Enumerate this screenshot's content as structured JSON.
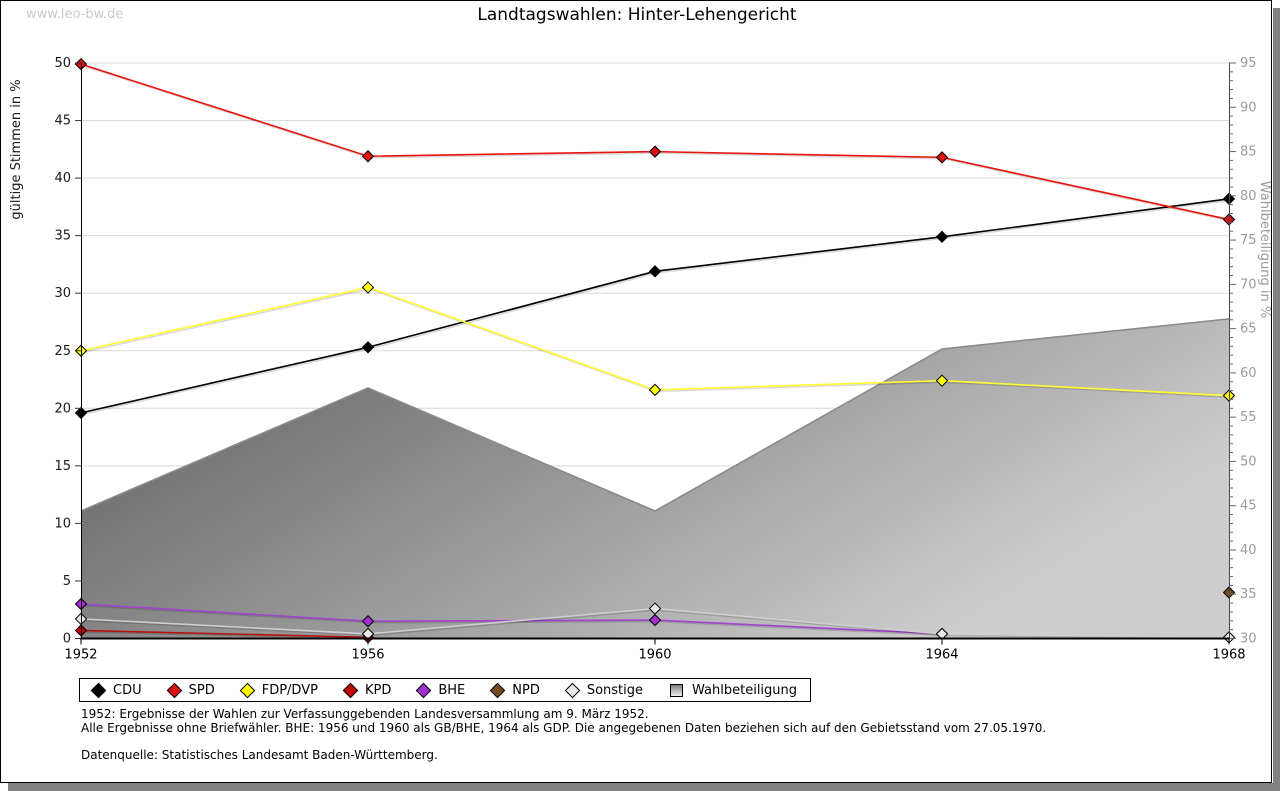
{
  "watermark": "www.leo-bw.de",
  "title": "Landtagswahlen: Hinter-Lehengericht",
  "footnotes": {
    "line1": "1952: Ergebnisse der Wahlen zur Verfassunggebenden Landesversammlung am 9. März 1952.",
    "line2": "Alle Ergebnisse ohne Briefwähler. BHE: 1956 und 1960 als GB/BHE, 1964 als GDP. Die angegebenen Daten beziehen sich auf den Gebietsstand vom 27.05.1970.",
    "source": "Datenquelle: Statistisches Landesamt Baden-Württemberg."
  },
  "chart_data": {
    "type": "line",
    "title": "Landtagswahlen: Hinter-Lehengericht",
    "x": [
      1952,
      1956,
      1960,
      1964,
      1968
    ],
    "y_left": {
      "label": "gültige Stimmen in %",
      "min": 0,
      "max": 50,
      "tick_step": 5,
      "ticks": [
        0,
        5,
        10,
        15,
        20,
        25,
        30,
        35,
        40,
        45,
        50
      ]
    },
    "y_right": {
      "label": "Wahlbeteiligung in %",
      "min": 30,
      "max": 95,
      "tick_step": 5,
      "minor_tick_step": 1,
      "ticks": [
        30,
        35,
        40,
        45,
        50,
        55,
        60,
        65,
        70,
        75,
        80,
        85,
        90,
        95
      ]
    },
    "grid": true,
    "legend_position": "bottom",
    "series": [
      {
        "name": "Wahlbeteiligung",
        "type": "area",
        "axis": "right",
        "color": "#8a8a8a",
        "fill_gradient": [
          "#5a5a5a",
          "#cdcdcd"
        ],
        "points": [
          [
            1952,
            44.4
          ],
          [
            1956,
            58.3
          ],
          [
            1960,
            44.4
          ],
          [
            1964,
            62.7
          ],
          [
            1968,
            66.1
          ]
        ]
      },
      {
        "name": "CDU",
        "type": "line",
        "axis": "left",
        "color": "#000000",
        "marker_color": "#000000",
        "points": [
          [
            1952,
            19.6
          ],
          [
            1956,
            25.3
          ],
          [
            1960,
            31.9
          ],
          [
            1964,
            34.9
          ],
          [
            1968,
            38.2
          ]
        ]
      },
      {
        "name": "SPD",
        "type": "line",
        "axis": "left",
        "color": "#e8140c",
        "marker_color": "#dd1111",
        "points": [
          [
            1952,
            49.9
          ],
          [
            1956,
            41.9
          ],
          [
            1960,
            42.3
          ],
          [
            1964,
            41.8
          ],
          [
            1968,
            36.4
          ]
        ]
      },
      {
        "name": "FDP/DVP",
        "type": "line",
        "axis": "left",
        "color": "#ffff2e",
        "marker_color": "#ffff00",
        "points": [
          [
            1952,
            25.0
          ],
          [
            1956,
            30.5
          ],
          [
            1960,
            21.6
          ],
          [
            1964,
            22.4
          ],
          [
            1968,
            21.1
          ]
        ]
      },
      {
        "name": "KPD",
        "type": "line",
        "axis": "left",
        "color": "#b51010",
        "marker_color": "#c00000",
        "points": [
          [
            1952,
            0.7
          ],
          [
            1956,
            0.1
          ]
        ]
      },
      {
        "name": "BHE",
        "type": "line",
        "axis": "left",
        "color": "#a341cf",
        "marker_color": "#a030d0",
        "points": [
          [
            1952,
            3.0
          ],
          [
            1956,
            1.5
          ],
          [
            1960,
            1.6
          ],
          [
            1964,
            0.4
          ]
        ]
      },
      {
        "name": "NPD",
        "type": "line",
        "axis": "left",
        "color": "#7a4a1e",
        "marker_color": "#7a4a1e",
        "points": [
          [
            1968,
            4.0
          ]
        ]
      },
      {
        "name": "Sonstige",
        "type": "line",
        "axis": "left",
        "color": "#cfcfcf",
        "marker_color": "#e8e8e8",
        "points": [
          [
            1952,
            1.7
          ],
          [
            1956,
            0.4
          ],
          [
            1960,
            2.6
          ],
          [
            1964,
            0.4
          ],
          [
            1968,
            0.1
          ]
        ]
      }
    ]
  }
}
